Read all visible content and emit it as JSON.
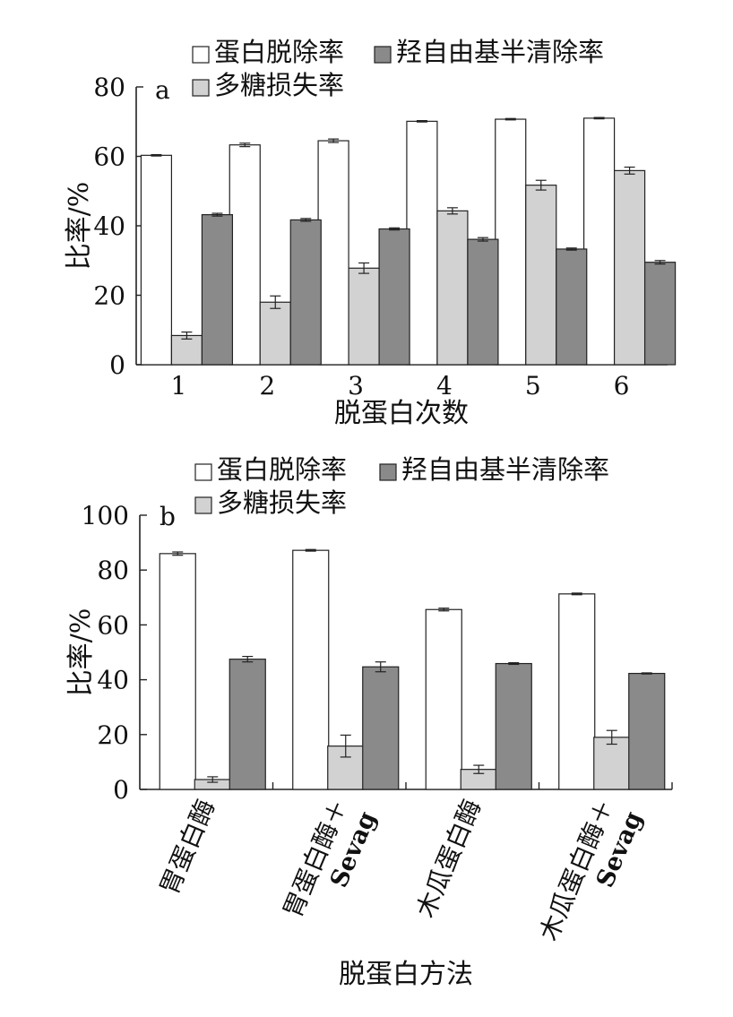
{
  "colors": {
    "protein_removal": "#ffffff",
    "polysaccharide_loss": "#d2d2d2",
    "hydroxyl_scavenging": "#8a8a8a",
    "stroke": "#222222"
  },
  "legend": {
    "protein_removal": "蛋白脱除率",
    "hydroxyl_scavenging": "羟自由基半清除率",
    "polysaccharide_loss": "多糖损失率"
  },
  "chart_data": [
    {
      "type": "bar",
      "panel_label": "a",
      "xlabel": "脱蛋白次数",
      "ylabel": "比率/%",
      "ylim": [
        0,
        80
      ],
      "yticks": [
        0,
        20,
        40,
        60,
        80
      ],
      "categories": [
        "1",
        "2",
        "3",
        "4",
        "5",
        "6"
      ],
      "series": [
        {
          "name": "蛋白脱除率",
          "key": "protein_removal",
          "values": [
            60.3,
            63.3,
            64.5,
            70.1,
            70.7,
            71.0
          ],
          "errors": [
            0.2,
            0.5,
            0.5,
            0.2,
            0.2,
            0.2
          ]
        },
        {
          "name": "多糖损失率",
          "key": "polysaccharide_loss",
          "values": [
            8.4,
            18.0,
            27.8,
            44.3,
            51.7,
            55.9
          ],
          "errors": [
            1.0,
            1.8,
            1.5,
            0.9,
            1.4,
            1.0
          ]
        },
        {
          "name": "羟自由基半清除率",
          "key": "hydroxyl_scavenging",
          "values": [
            43.2,
            41.7,
            39.1,
            36.1,
            33.3,
            29.5
          ],
          "errors": [
            0.4,
            0.4,
            0.3,
            0.5,
            0.3,
            0.5
          ]
        }
      ]
    },
    {
      "type": "bar",
      "panel_label": "b",
      "xlabel": "脱蛋白方法",
      "ylabel": "比率/%",
      "ylim": [
        0,
        100
      ],
      "yticks": [
        0,
        20,
        40,
        60,
        80,
        100
      ],
      "categories": [
        "胃蛋白酶",
        "胃蛋白酶＋Sevag",
        "木瓜蛋白酶",
        "木瓜蛋白酶＋Sevag"
      ],
      "category_lines": [
        [
          "胃蛋白酶"
        ],
        [
          "胃蛋白酶＋",
          "Sevag"
        ],
        [
          "木瓜蛋白酶"
        ],
        [
          "木瓜蛋白酶＋",
          "Sevag"
        ]
      ],
      "series": [
        {
          "name": "蛋白脱除率",
          "key": "protein_removal",
          "values": [
            86.0,
            87.2,
            65.6,
            71.3
          ],
          "errors": [
            0.6,
            0.3,
            0.5,
            0.3
          ]
        },
        {
          "name": "多糖损失率",
          "key": "polysaccharide_loss",
          "values": [
            3.6,
            15.8,
            7.3,
            19.0
          ],
          "errors": [
            1.0,
            4.0,
            1.5,
            2.5
          ]
        },
        {
          "name": "羟自由基半清除率",
          "key": "hydroxyl_scavenging",
          "values": [
            47.5,
            44.7,
            45.9,
            42.3
          ],
          "errors": [
            1.0,
            1.8,
            0.3,
            0.2
          ]
        }
      ]
    }
  ]
}
